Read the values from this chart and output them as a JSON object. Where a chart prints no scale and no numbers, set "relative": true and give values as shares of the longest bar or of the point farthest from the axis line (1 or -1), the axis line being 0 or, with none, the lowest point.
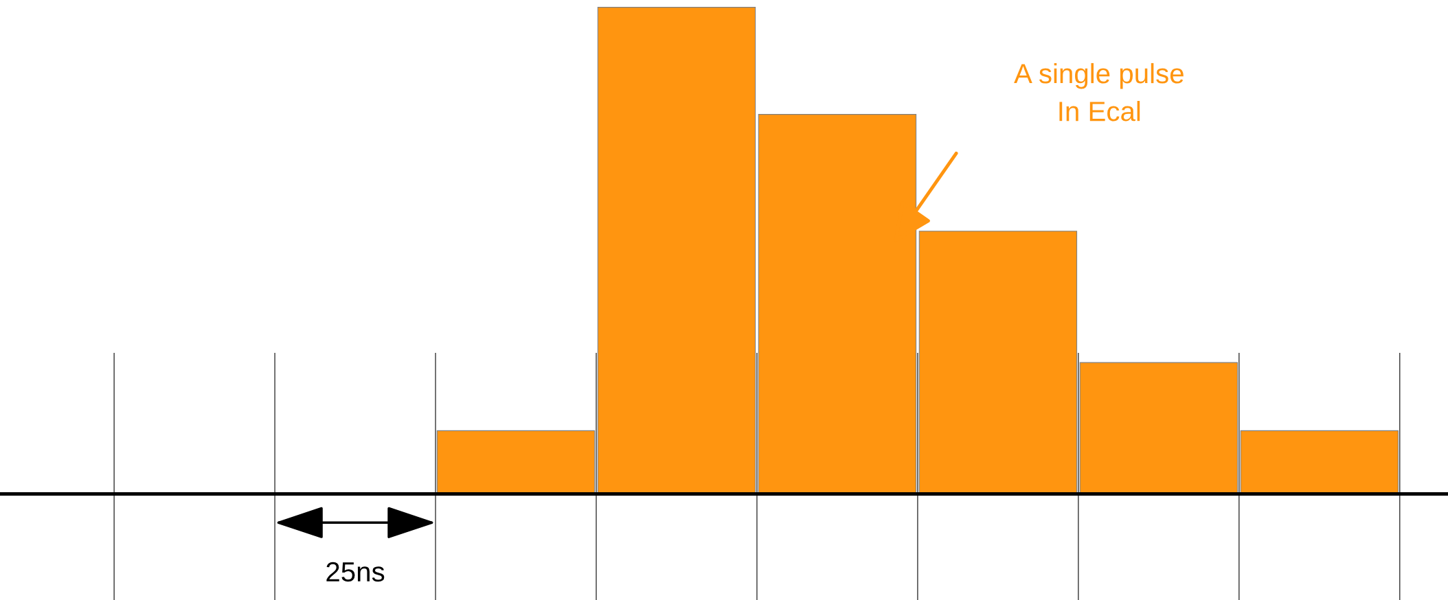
{
  "chart_data": {
    "type": "bar",
    "relative": true,
    "categories": [
      null,
      null,
      null,
      null,
      null,
      null
    ],
    "values": [
      0.13,
      1,
      0.78,
      0.54,
      0.27,
      0.13
    ],
    "color": "#ff9510",
    "annotations": [
      "A single pulse\nIn Ecal",
      "25ns"
    ]
  }
}
